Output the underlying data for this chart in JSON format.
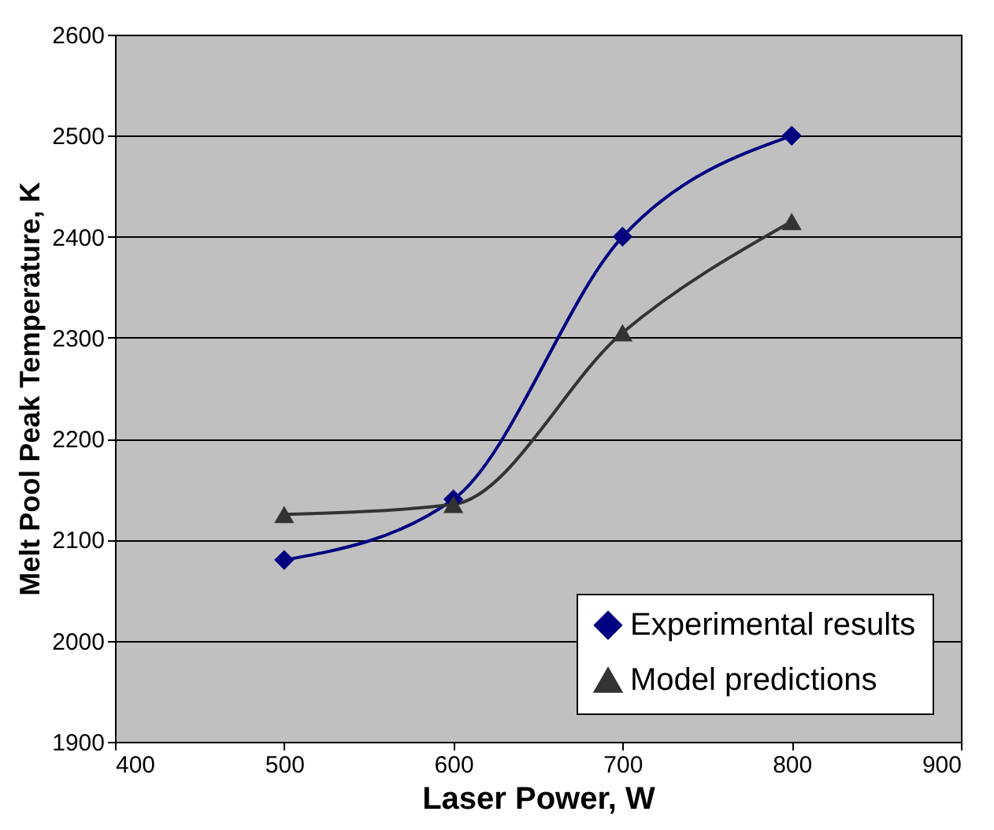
{
  "chart_data": {
    "type": "line",
    "xlabel": "Laser Power, W",
    "ylabel": "Melt Pool Peak Temperature, K",
    "x": [
      500,
      600,
      700,
      800
    ],
    "series": [
      {
        "name": "Experimental results",
        "color": "#000080",
        "marker": "diamond",
        "values": [
          2080,
          2140,
          2400,
          2500
        ]
      },
      {
        "name": "Model predictions",
        "color": "#333333",
        "marker": "triangle",
        "values": [
          2125,
          2135,
          2305,
          2415
        ]
      }
    ],
    "xlim": [
      400,
      900
    ],
    "xticks": [
      400,
      500,
      600,
      700,
      800,
      900
    ],
    "ylim": [
      1900,
      2600
    ],
    "yticks": [
      1900,
      2000,
      2100,
      2200,
      2300,
      2400,
      2500,
      2600
    ],
    "grid": "y",
    "legend": "bottom right",
    "line_style": "solid"
  }
}
